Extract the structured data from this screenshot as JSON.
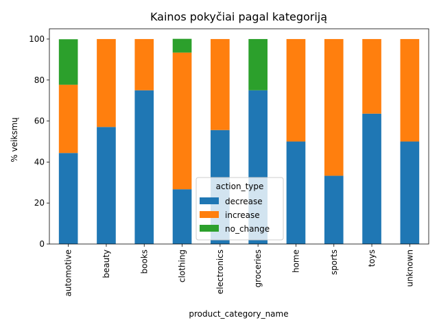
{
  "chart_data": {
    "type": "bar",
    "stacked": true,
    "title": "Kainos pokyčiai pagal kategoriją",
    "xlabel": "product_category_name",
    "ylabel": "% veiksmų",
    "ylim": [
      0,
      105
    ],
    "yticks": [
      "0",
      "20",
      "40",
      "60",
      "80",
      "100"
    ],
    "categories": [
      "automotive",
      "beauty",
      "books",
      "clothing",
      "electronics",
      "groceries",
      "home",
      "sports",
      "toys",
      "unknown"
    ],
    "series": [
      {
        "name": "decrease",
        "color": "#1f77b4",
        "values": [
          44.4,
          57.1,
          75.0,
          26.7,
          55.6,
          75.0,
          50.0,
          33.3,
          63.6,
          50.0
        ]
      },
      {
        "name": "increase",
        "color": "#ff7f0e",
        "values": [
          33.3,
          42.9,
          25.0,
          66.7,
          44.4,
          0,
          50.0,
          66.7,
          36.4,
          50.0
        ]
      },
      {
        "name": "no_change",
        "color": "#2ca02c",
        "values": [
          22.2,
          0,
          0,
          6.7,
          0,
          25.0,
          0,
          0,
          0,
          0
        ]
      }
    ],
    "legend": {
      "title": "action_type",
      "position": "lower-center"
    },
    "grid": false
  }
}
